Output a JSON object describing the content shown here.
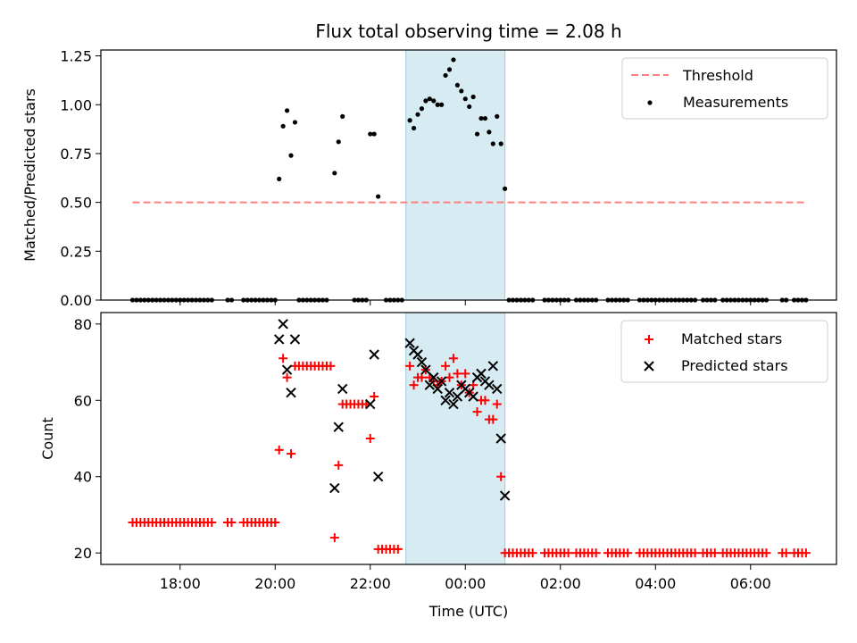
{
  "chart_data": [
    {
      "type": "scatter",
      "title": "Flux total observing time = 2.08 h",
      "xlabel": "",
      "ylabel": "Matched/Predicted stars",
      "ylim": [
        0,
        1.28
      ],
      "yticks": [
        "0.00",
        "0.25",
        "0.50",
        "0.75",
        "1.00",
        "1.25"
      ],
      "shaded_interval": [
        "22:45",
        "00:50"
      ],
      "legend": {
        "position": "top-right",
        "entries": [
          "Threshold",
          "Measurements"
        ]
      },
      "threshold": {
        "name": "Threshold",
        "value": 0.5,
        "x_start": "17:00",
        "x_end": "07:10",
        "color": "#ff7f7f"
      },
      "series": [
        {
          "name": "Measurements",
          "color": "#000000",
          "points": [
            [
              "20:05",
              0.62
            ],
            [
              "20:10",
              0.89
            ],
            [
              "20:15",
              0.97
            ],
            [
              "20:20",
              0.74
            ],
            [
              "20:25",
              0.91
            ],
            [
              "21:15",
              0.65
            ],
            [
              "21:20",
              0.81
            ],
            [
              "21:25",
              0.94
            ],
            [
              "22:00",
              0.85
            ],
            [
              "22:05",
              0.85
            ],
            [
              "22:10",
              0.53
            ],
            [
              "22:50",
              0.92
            ],
            [
              "22:55",
              0.88
            ],
            [
              "23:00",
              0.95
            ],
            [
              "23:05",
              0.98
            ],
            [
              "23:10",
              1.02
            ],
            [
              "23:15",
              1.03
            ],
            [
              "23:20",
              1.02
            ],
            [
              "23:25",
              1.0
            ],
            [
              "23:30",
              1.0
            ],
            [
              "23:35",
              1.15
            ],
            [
              "23:40",
              1.18
            ],
            [
              "23:45",
              1.23
            ],
            [
              "23:50",
              1.1
            ],
            [
              "23:55",
              1.07
            ],
            [
              "00:00",
              1.03
            ],
            [
              "00:05",
              0.99
            ],
            [
              "00:10",
              1.04
            ],
            [
              "00:15",
              0.85
            ],
            [
              "00:20",
              0.93
            ],
            [
              "00:25",
              0.93
            ],
            [
              "00:30",
              0.86
            ],
            [
              "00:35",
              0.8
            ],
            [
              "00:40",
              0.94
            ],
            [
              "00:45",
              0.8
            ],
            [
              "00:50",
              0.57
            ]
          ],
          "zero_runs": [
            [
              "17:00",
              "18:40"
            ],
            [
              "19:00",
              "19:05"
            ],
            [
              "19:20",
              "20:00"
            ],
            [
              "20:30",
              "21:05"
            ],
            [
              "21:40",
              "21:55"
            ],
            [
              "22:20",
              "22:40"
            ],
            [
              "00:55",
              "01:25"
            ],
            [
              "01:40",
              "02:10"
            ],
            [
              "02:20",
              "02:45"
            ],
            [
              "03:00",
              "03:25"
            ],
            [
              "03:40",
              "04:50"
            ],
            [
              "05:00",
              "05:15"
            ],
            [
              "05:25",
              "05:55"
            ],
            [
              "06:00",
              "06:20"
            ],
            [
              "06:40",
              "06:45"
            ],
            [
              "06:55",
              "07:10"
            ]
          ]
        }
      ]
    },
    {
      "type": "scatter",
      "xlabel": "Time (UTC)",
      "ylabel": "Count",
      "ylim": [
        17,
        83
      ],
      "yticks": [
        "20",
        "40",
        "60",
        "80"
      ],
      "xticks": [
        "18:00",
        "20:00",
        "22:00",
        "00:00",
        "02:00",
        "04:00",
        "06:00"
      ],
      "shaded_interval": [
        "22:45",
        "00:50"
      ],
      "legend": {
        "position": "top-right",
        "entries": [
          "Matched stars",
          "Predicted stars"
        ]
      },
      "series": [
        {
          "name": "Matched stars",
          "marker": "+",
          "color": "#ff0000",
          "points": [
            [
              "20:05",
              47
            ],
            [
              "20:10",
              71
            ],
            [
              "20:15",
              66
            ],
            [
              "20:20",
              46
            ],
            [
              "20:25",
              69
            ],
            [
              "20:30",
              69
            ],
            [
              "20:35",
              69
            ],
            [
              "20:40",
              69
            ],
            [
              "20:45",
              69
            ],
            [
              "20:50",
              69
            ],
            [
              "20:55",
              69
            ],
            [
              "21:00",
              69
            ],
            [
              "21:05",
              69
            ],
            [
              "21:10",
              69
            ],
            [
              "21:15",
              24
            ],
            [
              "21:20",
              43
            ],
            [
              "21:25",
              59
            ],
            [
              "21:30",
              59
            ],
            [
              "21:35",
              59
            ],
            [
              "21:40",
              59
            ],
            [
              "21:45",
              59
            ],
            [
              "21:50",
              59
            ],
            [
              "21:55",
              59
            ],
            [
              "22:00",
              50
            ],
            [
              "22:05",
              61
            ],
            [
              "22:10",
              21
            ],
            [
              "22:15",
              21
            ],
            [
              "22:20",
              21
            ],
            [
              "22:25",
              21
            ],
            [
              "22:30",
              21
            ],
            [
              "22:35",
              21
            ],
            [
              "22:50",
              69
            ],
            [
              "22:55",
              64
            ],
            [
              "23:00",
              66
            ],
            [
              "23:05",
              66
            ],
            [
              "23:10",
              68
            ],
            [
              "23:15",
              66
            ],
            [
              "23:20",
              65
            ],
            [
              "23:25",
              64
            ],
            [
              "23:30",
              65
            ],
            [
              "23:35",
              69
            ],
            [
              "23:40",
              66
            ],
            [
              "23:45",
              71
            ],
            [
              "23:50",
              67
            ],
            [
              "23:55",
              64
            ],
            [
              "00:00",
              67
            ],
            [
              "00:05",
              62
            ],
            [
              "00:10",
              64
            ],
            [
              "00:15",
              57
            ],
            [
              "00:20",
              60
            ],
            [
              "00:25",
              60
            ],
            [
              "00:30",
              55
            ],
            [
              "00:35",
              55
            ],
            [
              "00:40",
              59
            ],
            [
              "00:45",
              40
            ]
          ],
          "runs": [
            {
              "value": 28,
              "segments": [
                [
                  "17:00",
                  "18:40"
                ],
                [
                  "19:00",
                  "19:05"
                ],
                [
                  "19:20",
                  "20:00"
                ]
              ]
            },
            {
              "value": 20,
              "segments": [
                [
                  "00:50",
                  "01:25"
                ],
                [
                  "01:40",
                  "02:10"
                ],
                [
                  "02:20",
                  "02:45"
                ],
                [
                  "03:00",
                  "03:25"
                ],
                [
                  "03:40",
                  "04:50"
                ],
                [
                  "05:00",
                  "05:15"
                ],
                [
                  "05:25",
                  "05:55"
                ],
                [
                  "06:00",
                  "06:20"
                ],
                [
                  "06:40",
                  "06:45"
                ],
                [
                  "06:55",
                  "07:10"
                ]
              ]
            }
          ]
        },
        {
          "name": "Predicted stars",
          "marker": "x",
          "color": "#000000",
          "points": [
            [
              "20:05",
              76
            ],
            [
              "20:10",
              80
            ],
            [
              "20:15",
              68
            ],
            [
              "20:20",
              62
            ],
            [
              "20:25",
              76
            ],
            [
              "21:15",
              37
            ],
            [
              "21:20",
              53
            ],
            [
              "21:25",
              63
            ],
            [
              "22:00",
              59
            ],
            [
              "22:05",
              72
            ],
            [
              "22:10",
              40
            ],
            [
              "22:50",
              75
            ],
            [
              "22:55",
              73
            ],
            [
              "23:00",
              72
            ],
            [
              "23:05",
              70
            ],
            [
              "23:10",
              68
            ],
            [
              "23:15",
              64
            ],
            [
              "23:20",
              66
            ],
            [
              "23:25",
              63
            ],
            [
              "23:30",
              65
            ],
            [
              "23:35",
              60
            ],
            [
              "23:40",
              62
            ],
            [
              "23:45",
              59
            ],
            [
              "23:50",
              61
            ],
            [
              "23:55",
              64
            ],
            [
              "00:00",
              63
            ],
            [
              "00:05",
              62
            ],
            [
              "00:10",
              61
            ],
            [
              "00:15",
              66
            ],
            [
              "00:20",
              67
            ],
            [
              "00:25",
              65
            ],
            [
              "00:30",
              64
            ],
            [
              "00:35",
              69
            ],
            [
              "00:40",
              63
            ],
            [
              "00:45",
              50
            ],
            [
              "00:50",
              35
            ]
          ]
        }
      ]
    }
  ]
}
